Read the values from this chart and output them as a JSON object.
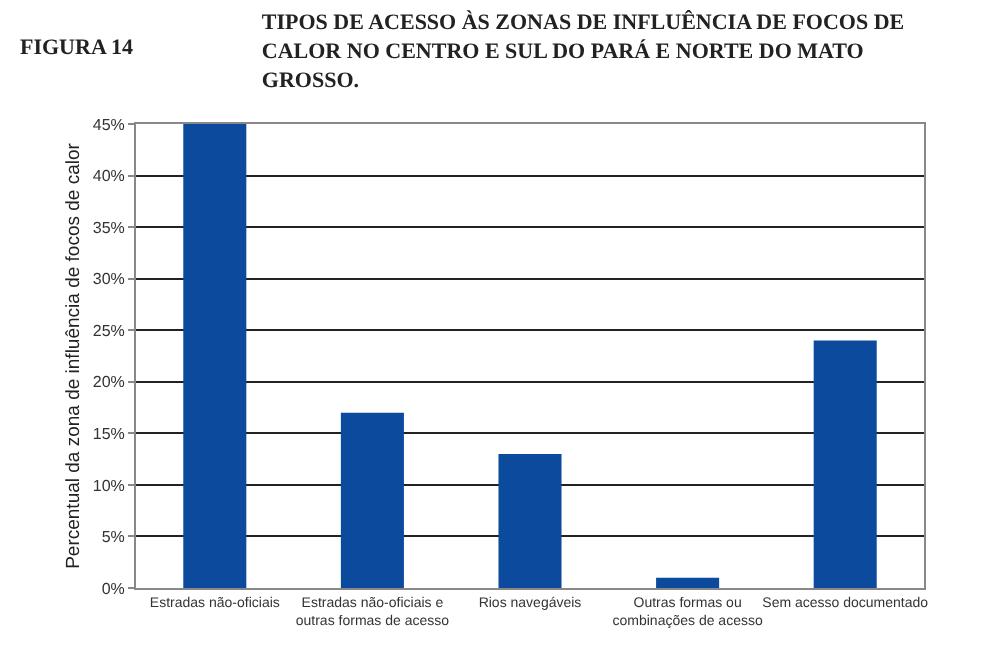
{
  "chart_data": {
    "type": "bar",
    "title": "TIPOS DE ACESSO ÀS ZONAS DE INFLUÊNCIA DE FOCOS DE CALOR NO CENTRO E SUL DO PARÁ E NORTE DO MATO GROSSO.",
    "annotations": [
      "FIGURA 14"
    ],
    "ylabel": "Percentual da zona de influência de focos de calor",
    "categories": [
      "Estradas não-oficiais",
      "Estradas não-oficiais e outras formas de acesso",
      "Rios navegáveis",
      "Outras formas ou combinações de acesso",
      "Sem acesso documentado"
    ],
    "values": [
      45,
      17,
      13,
      1,
      24
    ],
    "color": "#0b4a9c",
    "ylim": [
      0,
      45
    ],
    "yticks": [
      {
        "value": 0,
        "label": "0%"
      },
      {
        "value": 5,
        "label": "5%"
      },
      {
        "value": 10,
        "label": "10%"
      },
      {
        "value": 15,
        "label": "15%"
      },
      {
        "value": 20,
        "label": "20%"
      },
      {
        "value": 25,
        "label": "25%"
      },
      {
        "value": 30,
        "label": "30%"
      },
      {
        "value": 35,
        "label": "35%"
      },
      {
        "value": 40,
        "label": "40%"
      },
      {
        "value": 45,
        "label": "45%"
      }
    ],
    "grid": "y"
  }
}
